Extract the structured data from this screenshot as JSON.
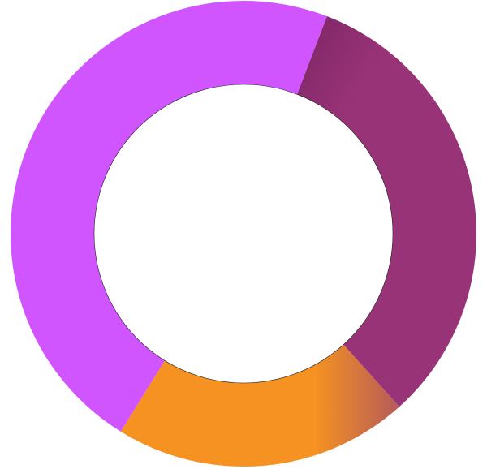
{
  "chart_data": {
    "type": "pie",
    "donut": true,
    "start_angle_deg": 21,
    "slices": [
      {
        "value": 32.5,
        "color": "#993377"
      },
      {
        "value": 20.5,
        "color": "#f59222"
      },
      {
        "value": 47.0,
        "color": "#d155ff"
      }
    ],
    "title": "",
    "legend": "none"
  }
}
